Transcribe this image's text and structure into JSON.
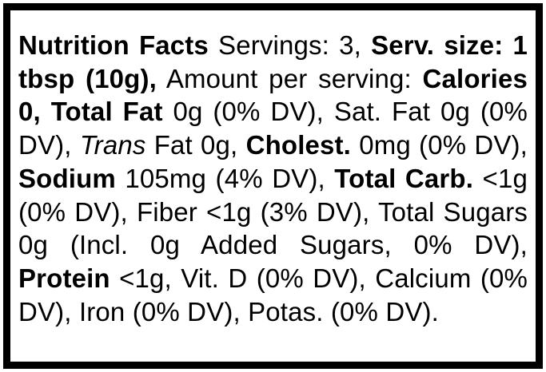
{
  "label": {
    "heading": "Nutrition Facts",
    "servings": "Servings: 3,",
    "serving_size": "Serv. size: 1 tbsp (10g),",
    "amount_per_serving": "Amount per serving:",
    "calories": "Calories 0,",
    "total_fat_label": "Total Fat",
    "total_fat_value": "0g (0% DV),",
    "sat_fat": "Sat. Fat 0g (0% DV),",
    "trans_label": "Trans",
    "trans_fat": "Fat 0g,",
    "cholest_label": "Cholest.",
    "cholest_value": "0mg (0% DV),",
    "sodium_label": "Sodium",
    "sodium_value": "105mg (4% DV),",
    "total_carb_label": "Total Carb.",
    "total_carb_value": "<1g (0% DV),",
    "fiber": "Fiber <1g (3% DV),",
    "total_sugars": "Total Sugars 0g (Incl. 0g Added Sugars, 0% DV),",
    "protein_label": "Protein",
    "protein_value": "<1g,",
    "vitamin_d": "Vit. D (0% DV),",
    "calcium": "Calcium (0% DV),",
    "iron": "Iron (0% DV),",
    "potassium": "Potas. (0% DV)."
  }
}
